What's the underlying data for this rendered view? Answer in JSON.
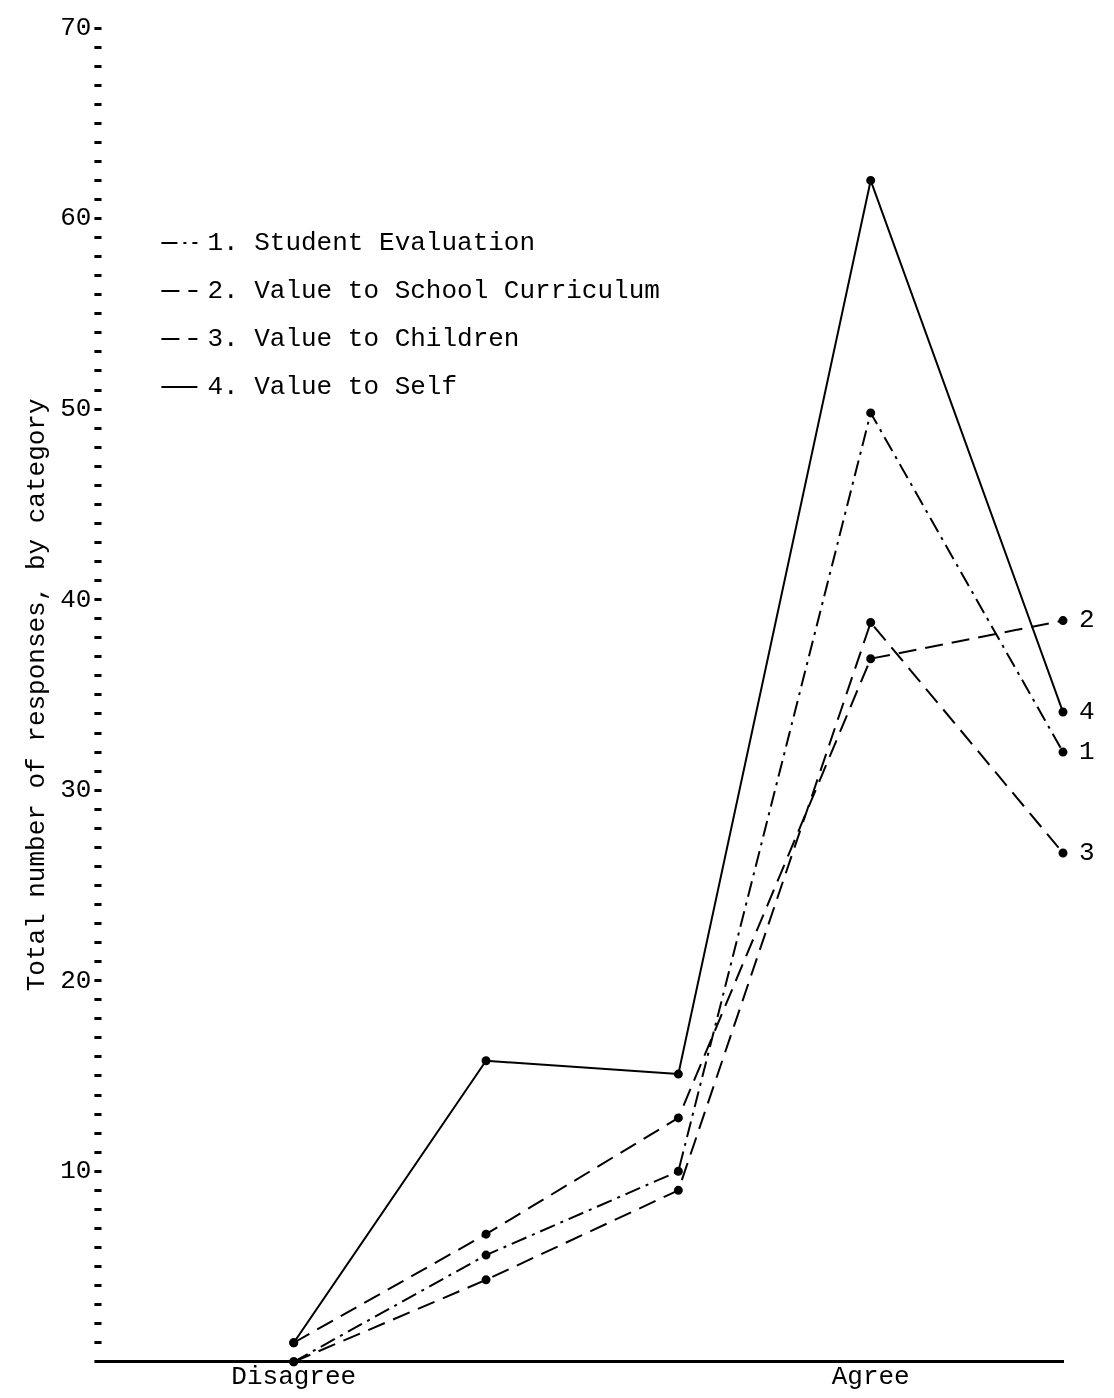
{
  "chart_data": {
    "type": "line",
    "ylabel": "Total number of responses, by category",
    "categories": [
      "Disagree",
      null,
      null,
      "Agree",
      null
    ],
    "series": [
      {
        "name": "1. Student Evaluation",
        "color": "#000000",
        "line_style": "dashdot",
        "values": [
          0,
          5.6,
          10,
          49.8,
          32
        ]
      },
      {
        "name": "2. Value to School Curriculum",
        "color": "#000000",
        "line_style": "dashed",
        "values": [
          1,
          6.7,
          12.8,
          36.9,
          38.9
        ]
      },
      {
        "name": "3. Value to Children",
        "color": "#000000",
        "line_style": "dashed",
        "values": [
          0,
          4.3,
          9,
          38.8,
          26.7
        ]
      },
      {
        "name": "4. Value to Self",
        "color": "#000000",
        "line_style": "solid",
        "values": [
          1,
          15.8,
          15.1,
          62,
          34.1
        ]
      }
    ],
    "ylim": [
      0,
      70
    ],
    "yticks": [
      {
        "value": 0,
        "label": null
      },
      {
        "value": 1,
        "label": null
      },
      {
        "value": 2,
        "label": null
      },
      {
        "value": 3,
        "label": null
      },
      {
        "value": 4,
        "label": null
      },
      {
        "value": 5,
        "label": null
      },
      {
        "value": 6,
        "label": null
      },
      {
        "value": 7,
        "label": null
      },
      {
        "value": 8,
        "label": null
      },
      {
        "value": 9,
        "label": null
      },
      10,
      {
        "value": 11,
        "label": null
      },
      {
        "value": 12,
        "label": null
      },
      {
        "value": 13,
        "label": null
      },
      {
        "value": 14,
        "label": null
      },
      {
        "value": 15,
        "label": null
      },
      {
        "value": 16,
        "label": null
      },
      {
        "value": 17,
        "label": null
      },
      {
        "value": 18,
        "label": null
      },
      {
        "value": 19,
        "label": null
      },
      20,
      {
        "value": 21,
        "label": null
      },
      {
        "value": 22,
        "label": null
      },
      {
        "value": 23,
        "label": null
      },
      {
        "value": 24,
        "label": null
      },
      {
        "value": 25,
        "label": null
      },
      {
        "value": 26,
        "label": null
      },
      {
        "value": 27,
        "label": null
      },
      {
        "value": 28,
        "label": null
      },
      {
        "value": 29,
        "label": null
      },
      30,
      {
        "value": 31,
        "label": null
      },
      {
        "value": 32,
        "label": null
      },
      {
        "value": 33,
        "label": null
      },
      {
        "value": 34,
        "label": null
      },
      {
        "value": 35,
        "label": null
      },
      {
        "value": 36,
        "label": null
      },
      {
        "value": 37,
        "label": null
      },
      {
        "value": 38,
        "label": null
      },
      {
        "value": 39,
        "label": null
      },
      40,
      {
        "value": 41,
        "label": null
      },
      {
        "value": 42,
        "label": null
      },
      {
        "value": 43,
        "label": null
      },
      {
        "value": 44,
        "label": null
      },
      {
        "value": 45,
        "label": null
      },
      {
        "value": 46,
        "label": null
      },
      {
        "value": 47,
        "label": null
      },
      {
        "value": 48,
        "label": null
      },
      {
        "value": 49,
        "label": null
      },
      50,
      {
        "value": 51,
        "label": null
      },
      {
        "value": 52,
        "label": null
      },
      {
        "value": 53,
        "label": null
      },
      {
        "value": 54,
        "label": null
      },
      {
        "value": 55,
        "label": null
      },
      {
        "value": 56,
        "label": null
      },
      {
        "value": 57,
        "label": null
      },
      {
        "value": 58,
        "label": null
      },
      {
        "value": 59,
        "label": null
      },
      60,
      {
        "value": 61,
        "label": null
      },
      {
        "value": 62,
        "label": null
      },
      {
        "value": 63,
        "label": null
      },
      {
        "value": 64,
        "label": null
      },
      {
        "value": 65,
        "label": null
      },
      {
        "value": 66,
        "label": null
      },
      {
        "value": 67,
        "label": null
      },
      {
        "value": 68,
        "label": null
      },
      {
        "value": 69,
        "label": null
      },
      70
    ],
    "grid": false,
    "legend": "top left",
    "marker": "circle",
    "annotations": [
      "1",
      "2",
      "3",
      "4"
    ]
  }
}
